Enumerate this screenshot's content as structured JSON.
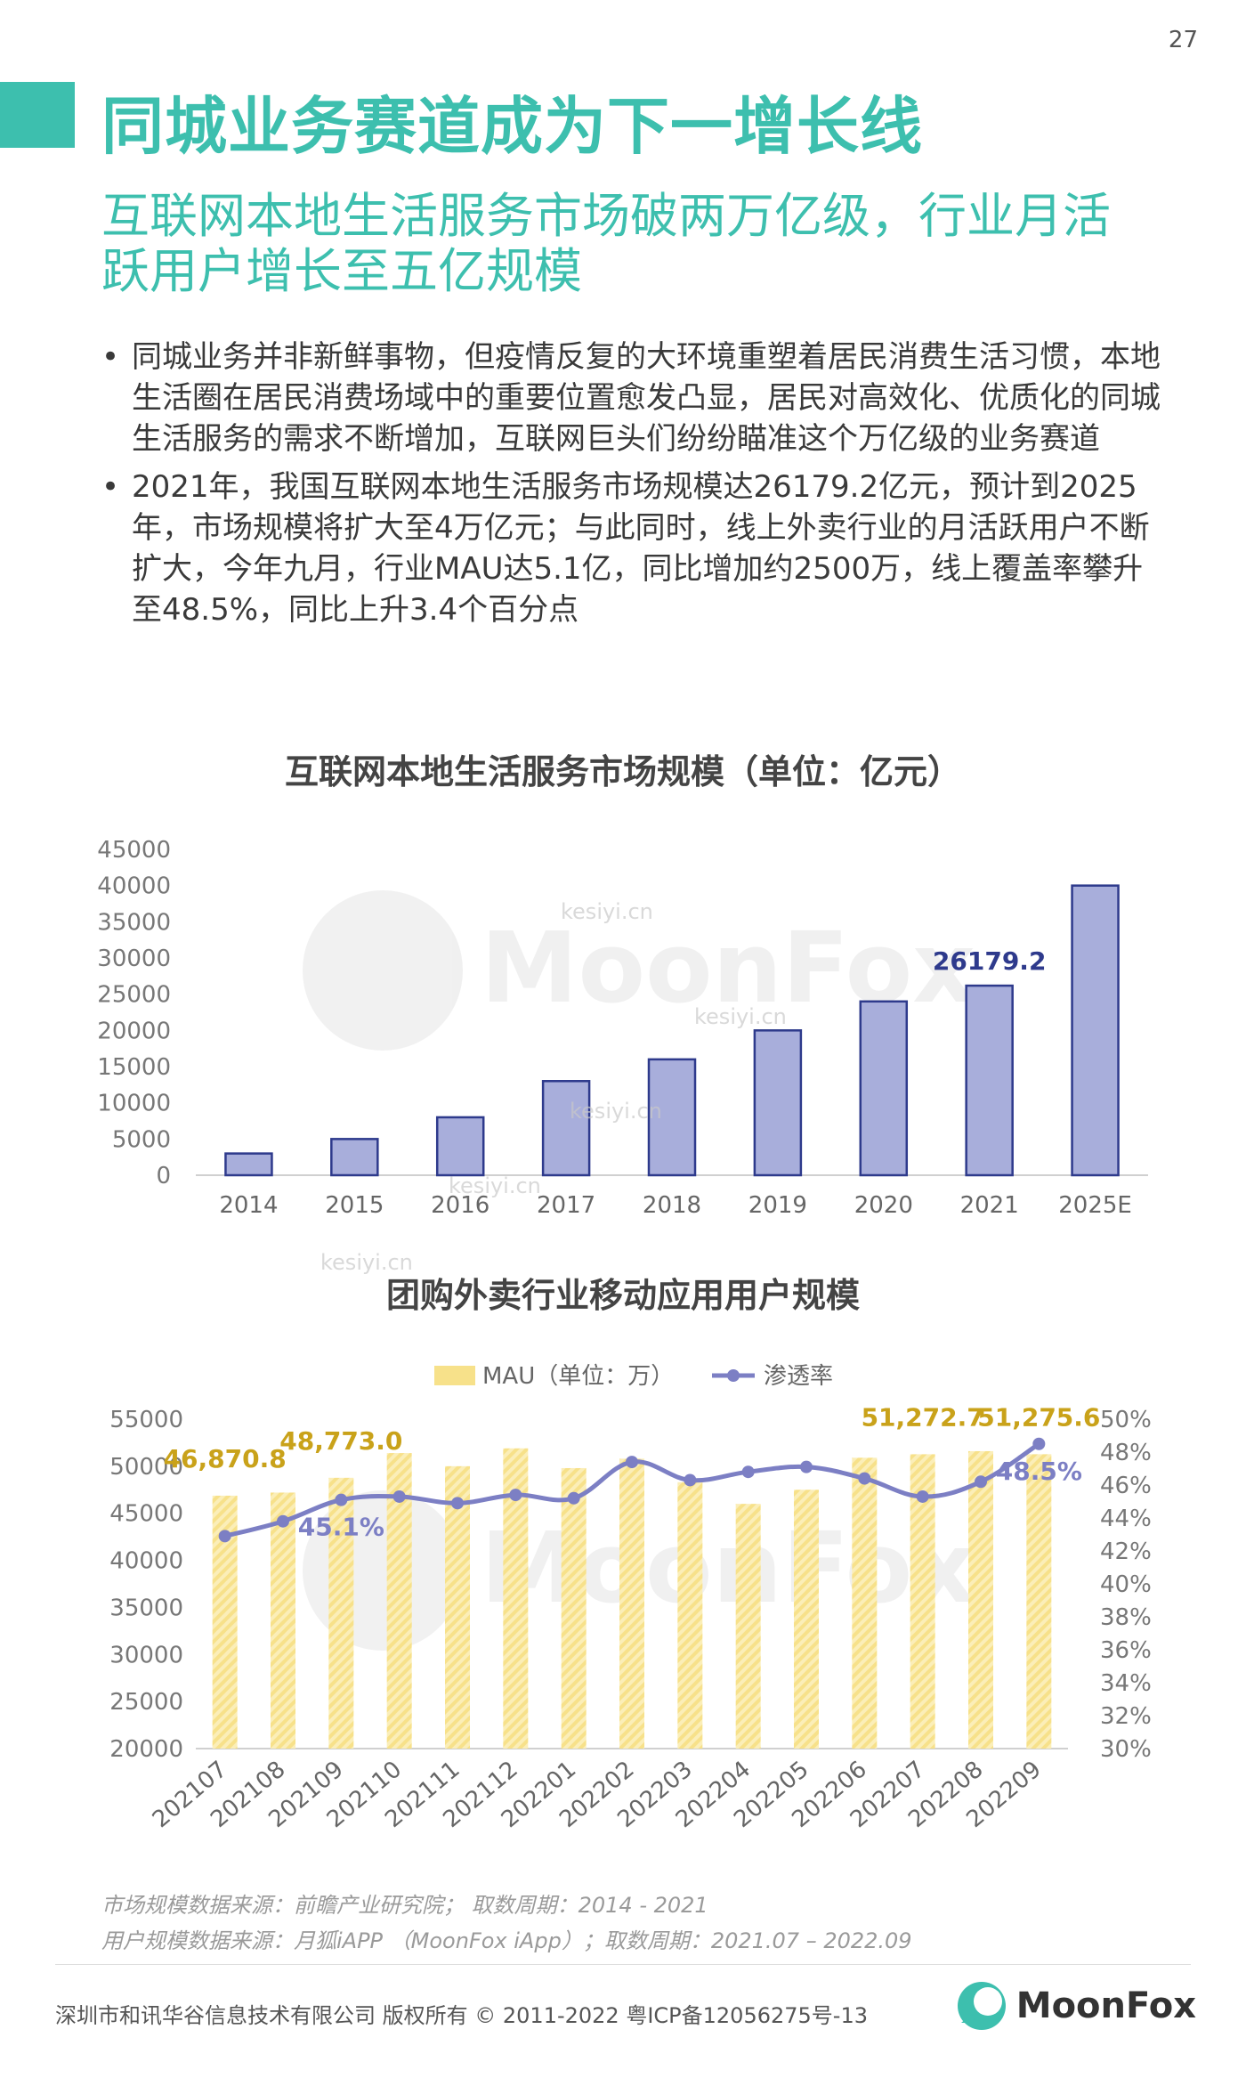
{
  "page_number": "27",
  "title": "同城业务赛道成为下一增长线",
  "subtitle": "互联网本地生活服务市场破两万亿级，行业月活跃用户增长至五亿规模",
  "bullets": [
    "同城业务并非新鲜事物，但疫情反复的大环境重塑着居民消费生活习惯，本地生活圈在居民消费场域中的重要位置愈发凸显，居民对高效化、优质化的同城生活服务的需求不断增加，互联网巨头们纷纷瞄准这个万亿级的业务赛道",
    "2021年，我国互联网本地生活服务市场规模达26179.2亿元，预计到2025年，市场规模将扩大至4万亿元；与此同时，线上外卖行业的月活跃用户不断扩大，今年九月，行业MAU达5.1亿，同比增加约2500万，线上覆盖率攀升至48.5%，同比上升3.4个百分点"
  ],
  "chart_data": [
    {
      "type": "bar",
      "title": "互联网本地生活服务市场规模（单位：亿元）",
      "categories": [
        "2014",
        "2015",
        "2016",
        "2017",
        "2018",
        "2019",
        "2020",
        "2021",
        "2025E"
      ],
      "values": [
        3000,
        5000,
        8000,
        13000,
        16000,
        20000,
        24000,
        26179.2,
        40000
      ],
      "data_labels": [
        {
          "index": 7,
          "text": "26179.2"
        }
      ],
      "yticks": [
        "0",
        "5000",
        "10000",
        "15000",
        "20000",
        "25000",
        "30000",
        "35000",
        "40000",
        "45000"
      ],
      "ylim": [
        0,
        45000
      ],
      "grid": false,
      "colors": {
        "bar": "#a8aedb",
        "bar_edge": "#2e3a8c",
        "label": "#2e3a8c"
      }
    },
    {
      "type": "bar+line",
      "title": "团购外卖行业移动应用用户规模",
      "categories": [
        "202107",
        "202108",
        "202109",
        "202110",
        "202111",
        "202112",
        "202201",
        "202202",
        "202203",
        "202204",
        "202205",
        "202206",
        "202207",
        "202208",
        "202209"
      ],
      "series": [
        {
          "name": "MAU（单位：万）",
          "axis": "left",
          "type": "bar",
          "values": [
            46870.8,
            47200,
            48773.0,
            51400,
            50000,
            51900,
            49800,
            50800,
            48300,
            46000,
            47500,
            50900,
            51272.7,
            51600,
            51275.6
          ]
        },
        {
          "name": "渗透率",
          "axis": "right",
          "type": "line",
          "values": [
            42.9,
            43.8,
            45.1,
            45.3,
            44.9,
            45.4,
            45.2,
            47.4,
            46.3,
            46.8,
            47.1,
            46.4,
            45.3,
            46.2,
            48.5
          ]
        }
      ],
      "data_labels": [
        {
          "series": 0,
          "index": 0,
          "text": "46,870.8"
        },
        {
          "series": 0,
          "index": 2,
          "text": "48,773.0"
        },
        {
          "series": 0,
          "index": 12,
          "text": "51,272.7"
        },
        {
          "series": 0,
          "index": 14,
          "text": "51,275.6"
        },
        {
          "series": 1,
          "index": 2,
          "text": "45.1%"
        },
        {
          "series": 1,
          "index": 14,
          "text": "48.5%"
        }
      ],
      "yticks_left": [
        "20000",
        "25000",
        "30000",
        "35000",
        "40000",
        "45000",
        "50000",
        "55000"
      ],
      "yticks_right": [
        "30%",
        "32%",
        "34%",
        "36%",
        "38%",
        "40%",
        "42%",
        "44%",
        "46%",
        "48%",
        "50%"
      ],
      "ylim_left": [
        20000,
        55000
      ],
      "ylim_right": [
        30,
        50
      ],
      "legend": "top",
      "grid": false,
      "colors": {
        "bar": "#f7e18a",
        "bar_label": "#c9a21a",
        "line": "#7c7fc4",
        "line_label": "#7c7fc4"
      }
    }
  ],
  "sources": [
    "市场规模数据来源：前瞻产业研究院；  取数周期：2014 - 2021",
    "用户规模数据来源：月狐iAPP （MoonFox iApp）；取数周期：2021.07 – 2022.09"
  ],
  "footer": "深圳市和讯华谷信息技术有限公司 版权所有 © 2011-2022 粤ICP备12056275号-13",
  "logo": "MoonFox",
  "watermarks": [
    "kesiyi.cn",
    "MoonFox"
  ]
}
